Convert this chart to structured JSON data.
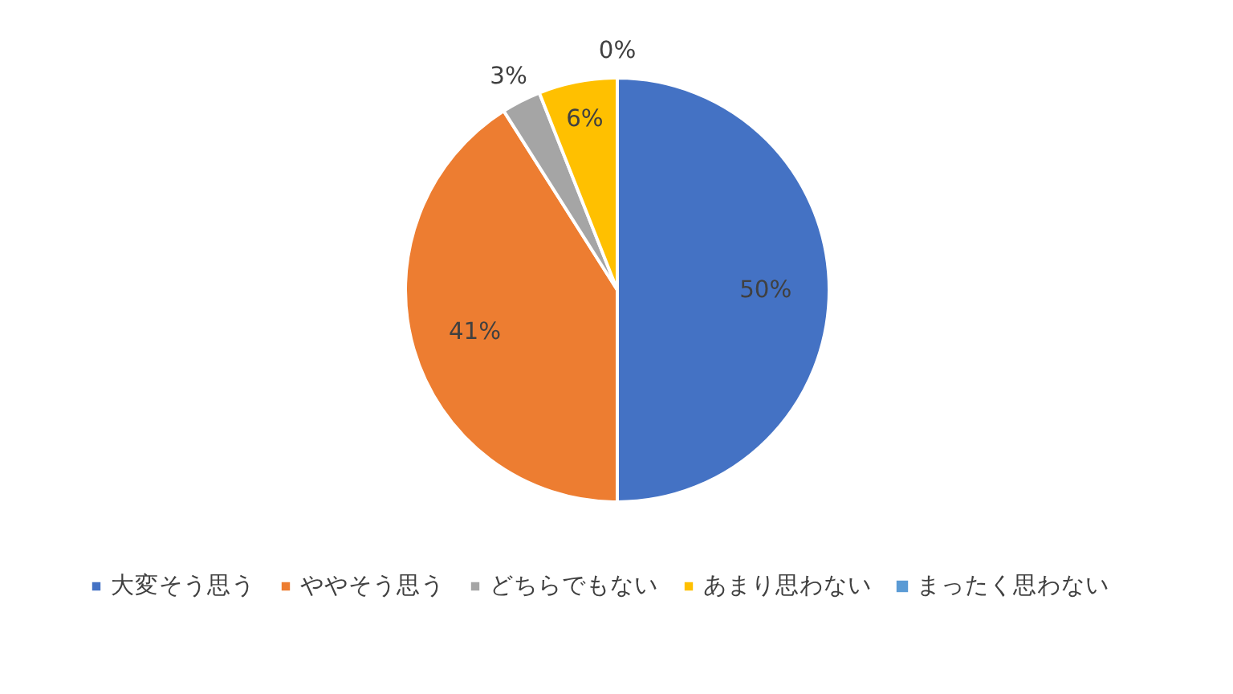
{
  "chart_data": {
    "type": "pie",
    "categories": [
      "大変そう思う",
      "ややそう思う",
      "どちらでもない",
      "あまり思わない",
      "まったく思わない"
    ],
    "values": [
      50,
      41,
      3,
      6,
      0
    ],
    "colors": [
      "#4472c4",
      "#ed7d31",
      "#a5a5a5",
      "#ffc000",
      "#5b9bd5"
    ],
    "value_labels": [
      "50%",
      "41%",
      "3%",
      "6%",
      "0%"
    ],
    "legend": "bottom"
  }
}
